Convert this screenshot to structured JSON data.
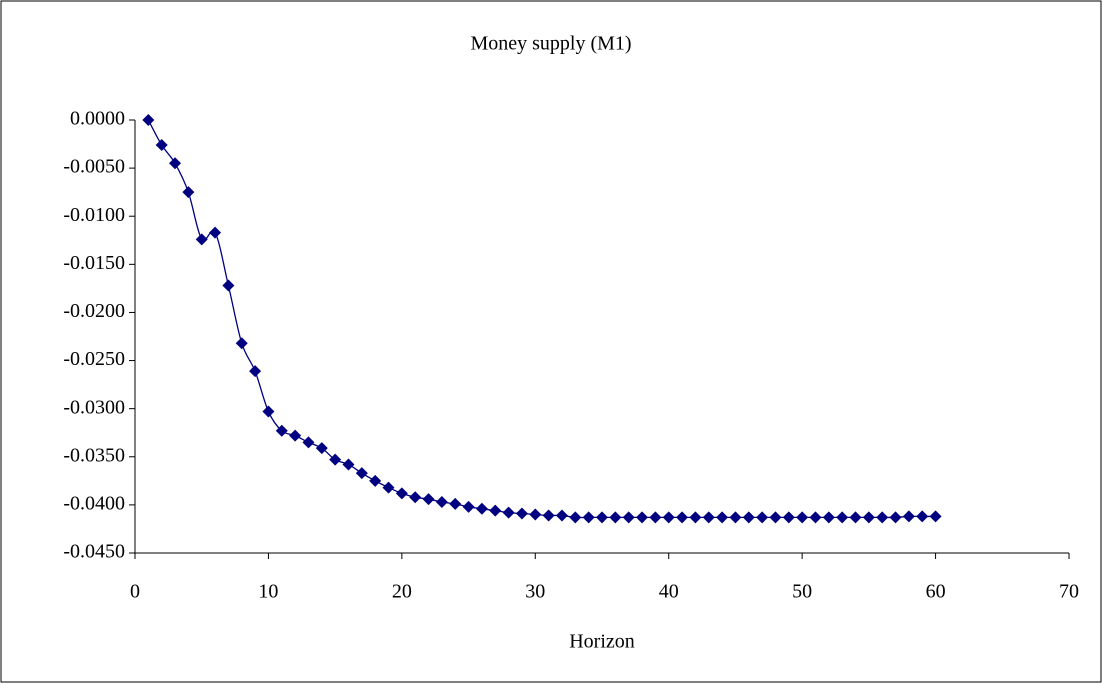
{
  "chart_data": {
    "type": "line",
    "title": "Money supply (M1)",
    "xlabel": "Horizon",
    "x": [
      1,
      2,
      3,
      4,
      5,
      6,
      7,
      8,
      9,
      10,
      11,
      12,
      13,
      14,
      15,
      16,
      17,
      18,
      19,
      20,
      21,
      22,
      23,
      24,
      25,
      26,
      27,
      28,
      29,
      30,
      31,
      32,
      33,
      34,
      35,
      36,
      37,
      38,
      39,
      40,
      41,
      42,
      43,
      44,
      45,
      46,
      47,
      48,
      49,
      50,
      51,
      52,
      53,
      54,
      55,
      56,
      57,
      58,
      59,
      60
    ],
    "series": [
      {
        "name": "Money supply (M1)",
        "color": "#000080",
        "values": [
          0,
          -0.0026,
          -0.0045,
          -0.0075,
          -0.0124,
          -0.0117,
          -0.0172,
          -0.0232,
          -0.0261,
          -0.0303,
          -0.0323,
          -0.0328,
          -0.0335,
          -0.0341,
          -0.0353,
          -0.0358,
          -0.0367,
          -0.0375,
          -0.0382,
          -0.0388,
          -0.0392,
          -0.0394,
          -0.0397,
          -0.0399,
          -0.0402,
          -0.0404,
          -0.0406,
          -0.0408,
          -0.0409,
          -0.041,
          -0.0411,
          -0.0411,
          -0.0413,
          -0.0413,
          -0.0413,
          -0.0413,
          -0.0413,
          -0.0413,
          -0.0413,
          -0.0413,
          -0.0413,
          -0.0413,
          -0.0413,
          -0.0413,
          -0.0413,
          -0.0413,
          -0.0413,
          -0.0413,
          -0.0413,
          -0.0413,
          -0.0413,
          -0.0413,
          -0.0413,
          -0.0413,
          -0.0413,
          -0.0413,
          -0.0413,
          -0.0412,
          -0.0412,
          -0.0412
        ]
      }
    ],
    "xlim": [
      0,
      70
    ],
    "xticks": [
      0,
      10,
      20,
      30,
      40,
      50,
      60,
      70
    ],
    "ylim": [
      -0.045,
      0
    ],
    "yticks": [
      {
        "value": 0,
        "label": "0.0000"
      },
      {
        "value": -0.005,
        "label": "-0.0050"
      },
      {
        "value": -0.01,
        "label": "-0.0100"
      },
      {
        "value": -0.015,
        "label": "-0.0150"
      },
      {
        "value": -0.02,
        "label": "-0.0200"
      },
      {
        "value": -0.025,
        "label": "-0.0250"
      },
      {
        "value": -0.03,
        "label": "-0.0300"
      },
      {
        "value": -0.035,
        "label": "-0.0350"
      },
      {
        "value": -0.04,
        "label": "-0.0400"
      },
      {
        "value": -0.045,
        "label": "-0.0450"
      }
    ],
    "grid": false
  }
}
